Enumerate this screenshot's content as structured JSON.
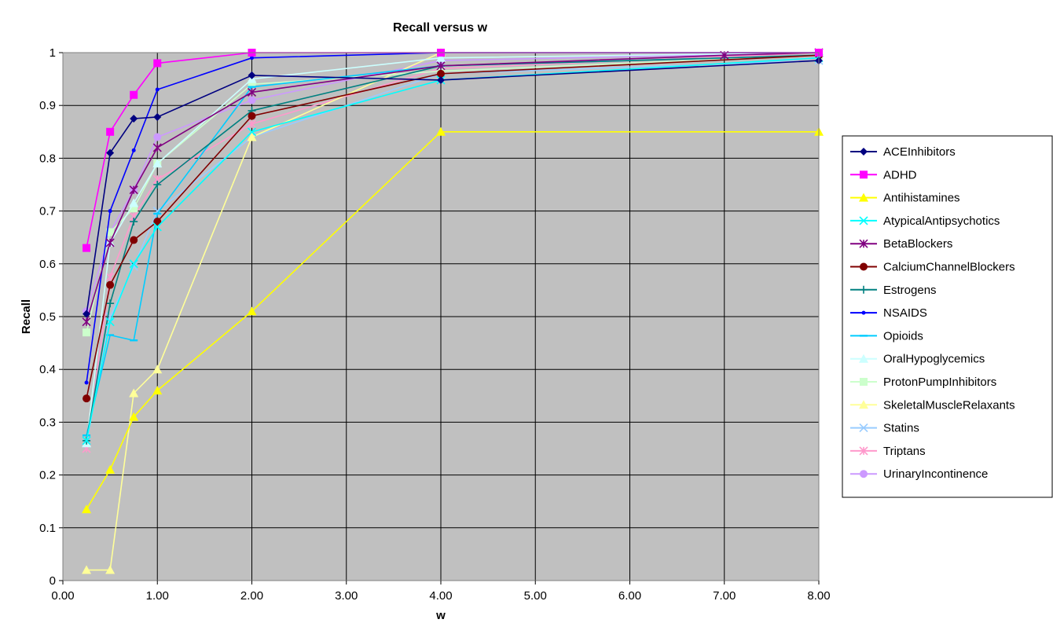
{
  "chart_data": {
    "type": "line",
    "title": "Recall versus w",
    "xlabel": "w",
    "ylabel": "Recall",
    "ylim": [
      0,
      1
    ],
    "xlim": [
      0,
      8
    ],
    "x_tick_labels": [
      "0.00",
      "1.00",
      "2.00",
      "3.00",
      "4.00",
      "5.00",
      "6.00",
      "7.00",
      "8.00"
    ],
    "y_tick_labels": [
      "0",
      "0.1",
      "0.2",
      "0.3",
      "0.4",
      "0.5",
      "0.6",
      "0.7",
      "0.8",
      "0.9",
      "1"
    ],
    "grid": true,
    "plot_background": "#c0c0c0",
    "legend_position": "right",
    "x_scale": "Excel line-chart category axis: points x=0.25,0.5,0.75,1,2,4,7,8 are placed by their values on the linear 0-8 scale except that the x=4 point is drawn at the position of the 4.00 tick",
    "series": [
      {
        "name": "ACEInhibitors",
        "color": "#000080",
        "marker": "diamond",
        "x": [
          0.25,
          0.5,
          0.75,
          1,
          2,
          4,
          8
        ],
        "values": [
          0.505,
          0.81,
          0.875,
          0.878,
          0.957,
          0.948,
          0.985
        ]
      },
      {
        "name": "ADHD",
        "color": "#ff00ff",
        "marker": "square",
        "x": [
          0.25,
          0.5,
          0.75,
          1,
          2,
          4,
          8
        ],
        "values": [
          0.63,
          0.85,
          0.92,
          0.98,
          1.0,
          1.0,
          1.0
        ]
      },
      {
        "name": "Antihistamines",
        "color": "#ffff00",
        "marker": "triangle",
        "x": [
          0.25,
          0.5,
          0.75,
          1,
          2,
          4,
          8
        ],
        "values": [
          0.135,
          0.21,
          0.31,
          0.36,
          0.51,
          0.85,
          0.85
        ]
      },
      {
        "name": "AtypicalAntipsychotics",
        "color": "#00ffff",
        "marker": "x",
        "x": [
          0.25,
          0.5,
          0.75,
          1,
          2,
          4,
          8
        ],
        "values": [
          0.265,
          0.49,
          0.6,
          0.67,
          0.85,
          0.948,
          0.99
        ]
      },
      {
        "name": "BetaBlockers",
        "color": "#800080",
        "marker": "star",
        "x": [
          0.25,
          0.5,
          0.75,
          1,
          2,
          4,
          7,
          8
        ],
        "values": [
          0.49,
          0.64,
          0.74,
          0.82,
          0.925,
          0.975,
          0.995,
          1.0
        ]
      },
      {
        "name": "CalciumChannelBlockers",
        "color": "#800000",
        "marker": "circle",
        "x": [
          0.25,
          0.5,
          0.75,
          1,
          2,
          4,
          8
        ],
        "values": [
          0.345,
          0.56,
          0.645,
          0.68,
          0.88,
          0.96,
          0.995
        ]
      },
      {
        "name": "Estrogens",
        "color": "#008080",
        "marker": "plus",
        "x": [
          0.25,
          0.5,
          0.75,
          1,
          2,
          4,
          8
        ],
        "values": [
          0.265,
          0.525,
          0.68,
          0.75,
          0.89,
          0.975,
          0.995
        ]
      },
      {
        "name": "NSAIDS",
        "color": "#0000ff",
        "marker": "dot",
        "x": [
          0.25,
          0.5,
          0.75,
          1,
          2,
          4,
          8
        ],
        "values": [
          0.375,
          0.7,
          0.815,
          0.93,
          0.99,
          1.0,
          1.0
        ]
      },
      {
        "name": "Opioids",
        "color": "#00ccff",
        "marker": "dash",
        "x": [
          0.25,
          0.5,
          0.75,
          1,
          2,
          4,
          8
        ],
        "values": [
          0.275,
          0.465,
          0.455,
          0.695,
          0.935,
          0.975,
          0.995
        ]
      },
      {
        "name": "OralHypoglycemics",
        "color": "#ccffff",
        "marker": "triangle",
        "x": [
          0.25,
          0.5,
          0.75,
          1,
          2,
          4,
          8
        ],
        "values": [
          0.26,
          0.64,
          0.715,
          0.79,
          0.95,
          0.99,
          1.0
        ]
      },
      {
        "name": "ProtonPumpInhibitors",
        "color": "#ccffcc",
        "marker": "square",
        "x": [
          0.25,
          0.5,
          0.75,
          1,
          2,
          4,
          8
        ],
        "values": [
          0.47,
          0.66,
          0.705,
          0.79,
          0.94,
          0.965,
          0.995
        ]
      },
      {
        "name": "SkeletalMuscleRelaxants",
        "color": "#ffff99",
        "marker": "triangle",
        "x": [
          0.25,
          0.5,
          0.75,
          1,
          2,
          4,
          8
        ],
        "values": [
          0.02,
          0.02,
          0.355,
          0.4,
          0.84,
          1.0,
          1.0
        ]
      },
      {
        "name": "Statins",
        "color": "#99ccff",
        "marker": "x",
        "x": [
          0.25,
          0.5,
          0.75,
          1,
          2,
          4,
          8
        ],
        "values": [
          0.26,
          0.5,
          0.595,
          0.7,
          0.84,
          0.96,
          0.985
        ]
      },
      {
        "name": "Triptans",
        "color": "#ff99cc",
        "marker": "star",
        "x": [
          0.25,
          0.5,
          0.75,
          1,
          2,
          4,
          8
        ],
        "values": [
          0.25,
          0.575,
          0.69,
          0.76,
          0.865,
          0.97,
          1.0
        ]
      },
      {
        "name": "UrinaryIncontinence",
        "color": "#cc99ff",
        "marker": "circle",
        "x": [
          0.25,
          0.5,
          0.75,
          1,
          2,
          4,
          8
        ],
        "values": [
          0.51,
          0.66,
          0.74,
          0.84,
          0.91,
          0.985,
          1.0
        ]
      }
    ]
  }
}
